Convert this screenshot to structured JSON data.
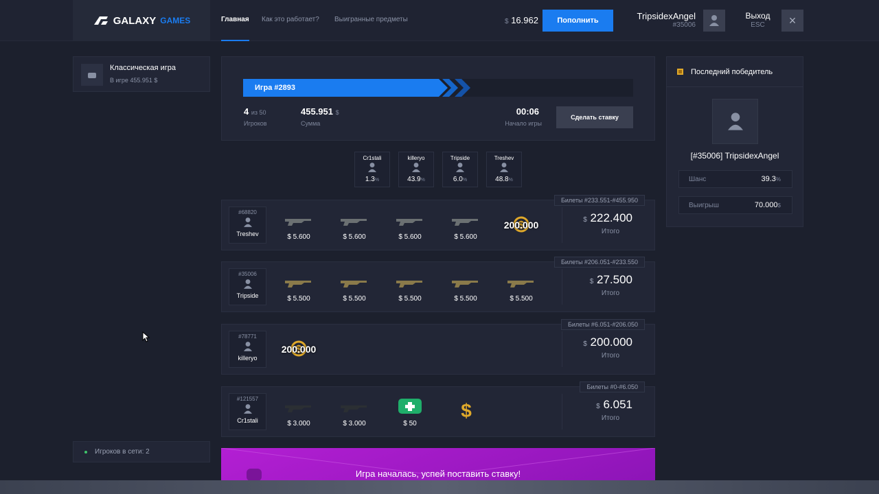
{
  "header": {
    "logo": "GALAXY",
    "logo_accent": "GAMES",
    "nav": [
      "Главная",
      "Как это работает?",
      "Выигранные предметы"
    ],
    "balance_currency": "$",
    "balance": "16.962",
    "deposit": "Пополнить",
    "user_name": "TripsidexAngel",
    "user_id": "#35006",
    "logout": "Выход",
    "logout_key": "ESC"
  },
  "sidebar": {
    "mode_title": "Классическая игра",
    "mode_subtitle": "В игре 455.951 $",
    "online": "Игроков в сети: 2"
  },
  "game": {
    "title": "Игра #2893",
    "players": "4",
    "players_max": "из 50",
    "players_label": "Игроков",
    "sum": "455.951",
    "sum_currency": "$",
    "sum_label": "Сумма",
    "timer": "00:06",
    "timer_label": "Начало игры",
    "bet_button": "Сделать ставку"
  },
  "participants": [
    {
      "name": "Cr1stali",
      "chance": "1.3",
      "unit": "%"
    },
    {
      "name": "killeryo",
      "chance": "43.9",
      "unit": "%"
    },
    {
      "name": "Tripside",
      "chance": "6.0",
      "unit": "%"
    },
    {
      "name": "Treshev",
      "chance": "48.8",
      "unit": "%"
    }
  ],
  "bets": [
    {
      "tickets": "Билеты #233.551-#455.950",
      "id": "#68820",
      "name": "Treshev",
      "items": [
        {
          "price": "$ 5.600"
        },
        {
          "price": "$ 5.600"
        },
        {
          "price": "$ 5.600"
        },
        {
          "price": "$ 5.600"
        },
        {
          "coin": "200.000"
        }
      ],
      "currency": "$",
      "total": "222.400",
      "total_label": "Итого"
    },
    {
      "tickets": "Билеты #206.051-#233.550",
      "id": "#35006",
      "name": "Tripside",
      "items": [
        {
          "price": "$ 5.500"
        },
        {
          "price": "$ 5.500"
        },
        {
          "price": "$ 5.500"
        },
        {
          "price": "$ 5.500"
        },
        {
          "price": "$ 5.500"
        }
      ],
      "currency": "$",
      "total": "27.500",
      "total_label": "Итого"
    },
    {
      "tickets": "Билеты #6.051-#206.050",
      "id": "#78771",
      "name": "killeryo",
      "items": [
        {
          "coin": "200.000"
        }
      ],
      "currency": "$",
      "total": "200.000",
      "total_label": "Итого"
    },
    {
      "tickets": "Билеты #0-#6.050",
      "id": "#121557",
      "name": "Cr1stali",
      "items": [
        {
          "price": "$ 3.000"
        },
        {
          "price": "$ 3.000"
        },
        {
          "price": "$ 50"
        }
      ],
      "currency": "$",
      "total": "6.051",
      "total_label": "Итого"
    }
  ],
  "winner": {
    "title": "Последний победитель",
    "name": "[#35006] TripsidexAngel",
    "chance_label": "Шанс",
    "chance": "39.3",
    "chance_unit": "%",
    "win_label": "Выигрыш",
    "win": "70.000",
    "win_unit": "$"
  },
  "banner": "Игра началась, успей поставить ставку!"
}
